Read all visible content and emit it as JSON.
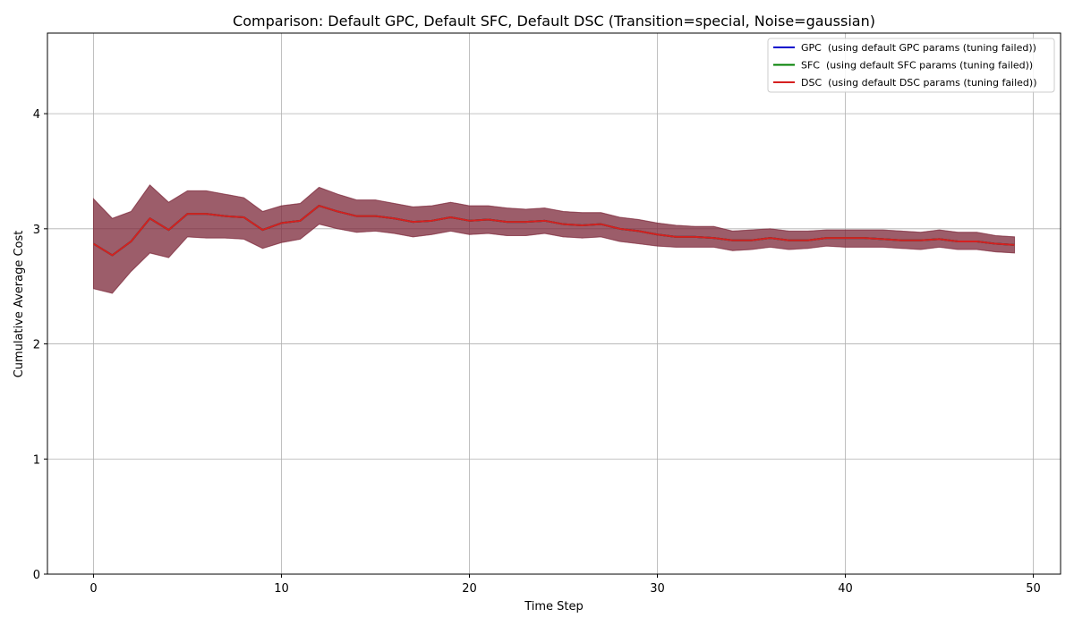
{
  "chart_data": {
    "type": "line",
    "title": "Comparison: Default GPC, Default SFC, Default DSC (Transition=special, Noise=gaussian)",
    "xlabel": "Time Step",
    "ylabel": "Cumulative Average Cost",
    "xlim": [
      -2.45,
      51.45
    ],
    "ylim": [
      0,
      4.7
    ],
    "xticks": [
      0,
      10,
      20,
      30,
      40,
      50
    ],
    "yticks": [
      0,
      1,
      2,
      3,
      4
    ],
    "grid": true,
    "legend_position": "top-right",
    "x": [
      0,
      1,
      2,
      3,
      4,
      5,
      6,
      7,
      8,
      9,
      10,
      11,
      12,
      13,
      14,
      15,
      16,
      17,
      18,
      19,
      20,
      21,
      22,
      23,
      24,
      25,
      26,
      27,
      28,
      29,
      30,
      31,
      32,
      33,
      34,
      35,
      36,
      37,
      38,
      39,
      40,
      41,
      42,
      43,
      44,
      45,
      46,
      47,
      48,
      49
    ],
    "series": [
      {
        "name": "GPC  (using default GPC params (tuning failed))",
        "color": "#0000cc",
        "values": [
          2.87,
          2.77,
          2.89,
          3.09,
          2.99,
          3.13,
          3.13,
          3.11,
          3.1,
          2.99,
          3.05,
          3.07,
          3.2,
          3.15,
          3.11,
          3.11,
          3.09,
          3.06,
          3.07,
          3.1,
          3.07,
          3.08,
          3.06,
          3.06,
          3.07,
          3.04,
          3.03,
          3.04,
          3.0,
          2.98,
          2.95,
          2.93,
          2.93,
          2.92,
          2.9,
          2.9,
          2.92,
          2.9,
          2.9,
          2.92,
          2.92,
          2.92,
          2.91,
          2.9,
          2.9,
          2.91,
          2.89,
          2.89,
          2.87,
          2.86
        ],
        "lower": [
          2.48,
          2.44,
          2.63,
          2.79,
          2.75,
          2.93,
          2.92,
          2.92,
          2.91,
          2.83,
          2.88,
          2.91,
          3.04,
          3.0,
          2.97,
          2.98,
          2.96,
          2.93,
          2.95,
          2.98,
          2.95,
          2.96,
          2.94,
          2.94,
          2.96,
          2.93,
          2.92,
          2.93,
          2.89,
          2.87,
          2.85,
          2.84,
          2.84,
          2.84,
          2.81,
          2.82,
          2.84,
          2.82,
          2.83,
          2.85,
          2.84,
          2.84,
          2.84,
          2.83,
          2.82,
          2.84,
          2.82,
          2.82,
          2.8,
          2.79
        ],
        "upper": [
          3.26,
          3.09,
          3.15,
          3.38,
          3.23,
          3.33,
          3.33,
          3.3,
          3.27,
          3.15,
          3.2,
          3.22,
          3.36,
          3.3,
          3.25,
          3.25,
          3.22,
          3.19,
          3.2,
          3.23,
          3.2,
          3.2,
          3.18,
          3.17,
          3.18,
          3.15,
          3.14,
          3.14,
          3.1,
          3.08,
          3.05,
          3.03,
          3.02,
          3.02,
          2.98,
          2.99,
          3.0,
          2.98,
          2.98,
          2.99,
          2.99,
          2.99,
          2.99,
          2.98,
          2.97,
          2.99,
          2.97,
          2.97,
          2.94,
          2.93
        ]
      },
      {
        "name": "SFC  (using default SFC params (tuning failed))",
        "color": "#007f00",
        "values": [
          2.87,
          2.77,
          2.89,
          3.09,
          2.99,
          3.13,
          3.13,
          3.11,
          3.1,
          2.99,
          3.05,
          3.07,
          3.2,
          3.15,
          3.11,
          3.11,
          3.09,
          3.06,
          3.07,
          3.1,
          3.07,
          3.08,
          3.06,
          3.06,
          3.07,
          3.04,
          3.03,
          3.04,
          3.0,
          2.98,
          2.95,
          2.93,
          2.93,
          2.92,
          2.9,
          2.9,
          2.92,
          2.9,
          2.9,
          2.92,
          2.92,
          2.92,
          2.91,
          2.9,
          2.9,
          2.91,
          2.89,
          2.89,
          2.87,
          2.86
        ],
        "lower": [
          2.48,
          2.44,
          2.63,
          2.79,
          2.75,
          2.93,
          2.92,
          2.92,
          2.91,
          2.83,
          2.88,
          2.91,
          3.04,
          3.0,
          2.97,
          2.98,
          2.96,
          2.93,
          2.95,
          2.98,
          2.95,
          2.96,
          2.94,
          2.94,
          2.96,
          2.93,
          2.92,
          2.93,
          2.89,
          2.87,
          2.85,
          2.84,
          2.84,
          2.84,
          2.81,
          2.82,
          2.84,
          2.82,
          2.83,
          2.85,
          2.84,
          2.84,
          2.84,
          2.83,
          2.82,
          2.84,
          2.82,
          2.82,
          2.8,
          2.79
        ],
        "upper": [
          3.26,
          3.09,
          3.15,
          3.38,
          3.23,
          3.33,
          3.33,
          3.3,
          3.27,
          3.15,
          3.2,
          3.22,
          3.36,
          3.3,
          3.25,
          3.25,
          3.22,
          3.19,
          3.2,
          3.23,
          3.2,
          3.2,
          3.18,
          3.17,
          3.18,
          3.15,
          3.14,
          3.14,
          3.1,
          3.08,
          3.05,
          3.03,
          3.02,
          3.02,
          2.98,
          2.99,
          3.0,
          2.98,
          2.98,
          2.99,
          2.99,
          2.99,
          2.99,
          2.98,
          2.97,
          2.99,
          2.97,
          2.97,
          2.94,
          2.93
        ]
      },
      {
        "name": "DSC  (using default DSC params (tuning failed))",
        "color": "#d62020",
        "values": [
          2.87,
          2.77,
          2.89,
          3.09,
          2.99,
          3.13,
          3.13,
          3.11,
          3.1,
          2.99,
          3.05,
          3.07,
          3.2,
          3.15,
          3.11,
          3.11,
          3.09,
          3.06,
          3.07,
          3.1,
          3.07,
          3.08,
          3.06,
          3.06,
          3.07,
          3.04,
          3.03,
          3.04,
          3.0,
          2.98,
          2.95,
          2.93,
          2.93,
          2.92,
          2.9,
          2.9,
          2.92,
          2.9,
          2.9,
          2.92,
          2.92,
          2.92,
          2.91,
          2.9,
          2.9,
          2.91,
          2.89,
          2.89,
          2.87,
          2.86
        ],
        "lower": [
          2.48,
          2.44,
          2.63,
          2.79,
          2.75,
          2.93,
          2.92,
          2.92,
          2.91,
          2.83,
          2.88,
          2.91,
          3.04,
          3.0,
          2.97,
          2.98,
          2.96,
          2.93,
          2.95,
          2.98,
          2.95,
          2.96,
          2.94,
          2.94,
          2.96,
          2.93,
          2.92,
          2.93,
          2.89,
          2.87,
          2.85,
          2.84,
          2.84,
          2.84,
          2.81,
          2.82,
          2.84,
          2.82,
          2.83,
          2.85,
          2.84,
          2.84,
          2.84,
          2.83,
          2.82,
          2.84,
          2.82,
          2.82,
          2.8,
          2.79
        ],
        "upper": [
          3.26,
          3.09,
          3.15,
          3.38,
          3.23,
          3.33,
          3.33,
          3.3,
          3.27,
          3.15,
          3.2,
          3.22,
          3.36,
          3.3,
          3.25,
          3.25,
          3.22,
          3.19,
          3.2,
          3.23,
          3.2,
          3.2,
          3.18,
          3.17,
          3.18,
          3.15,
          3.14,
          3.14,
          3.1,
          3.08,
          3.05,
          3.03,
          3.02,
          3.02,
          2.98,
          2.99,
          3.0,
          2.98,
          2.98,
          2.99,
          2.99,
          2.99,
          2.99,
          2.98,
          2.97,
          2.99,
          2.97,
          2.97,
          2.94,
          2.93
        ]
      }
    ],
    "band_color": "#7f2a3c"
  }
}
